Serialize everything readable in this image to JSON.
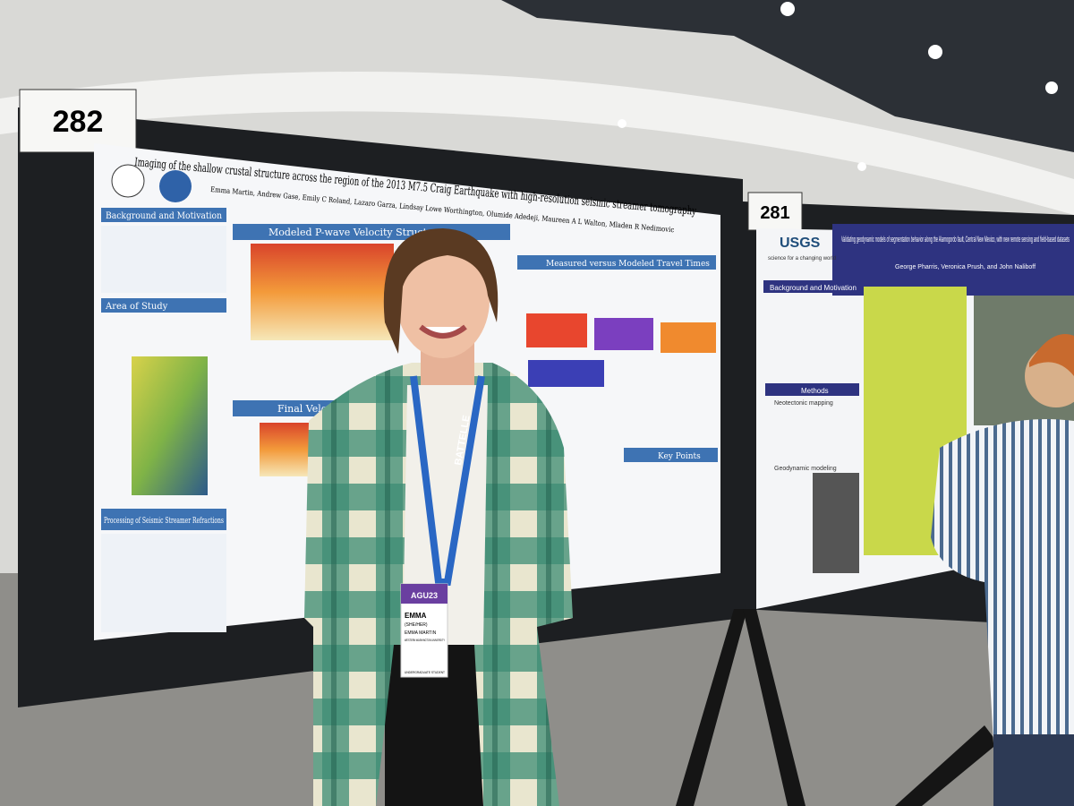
{
  "signs": {
    "left": "282",
    "right": "281"
  },
  "poster_left": {
    "title": "Imaging of the shallow crustal structure across the region of the 2013 M7.5 Craig Earthquake with high-resolution seismic streamer tomography",
    "authors": "Emma Martin, Andrew Gase, Emily C Roland, Lazaro Garza, Lindsay Lowe Worthington, Olumide Adedeji, Maureen A L Walton, Mladen R Nedimovic",
    "sections": [
      "Background and Motivation",
      "Area of Study",
      "Processing of Seismic Streamer Refractions",
      "Modeled P-wave Velocity Structure",
      "Final Velocity Model",
      "Measured versus Modeled Travel Times",
      "Key Points"
    ]
  },
  "poster_right": {
    "logo": "USGS",
    "logo_tagline": "science for a changing world",
    "title": "Validating geodynamic models of segmentation behavior along the Alamogordo fault, Central New Mexico, with new remote sensing and field-based datasets",
    "authors": "George Pharris, Veronica Prush, and John Naliboff",
    "sections": [
      "Background and Motivation",
      "Methods",
      "Neotectonic mapping",
      "Geodynamic modeling"
    ]
  },
  "badge": {
    "event": "AGU23",
    "first_name": "EMMA",
    "pronouns": "(SHE/HER)",
    "full_name": "EMMA MARTIN",
    "affiliation": "WESTERN WASHINGTON UNIVERSITY",
    "role": "UNDERGRADUATE STUDENT",
    "lanyard": "BATTELLE"
  }
}
